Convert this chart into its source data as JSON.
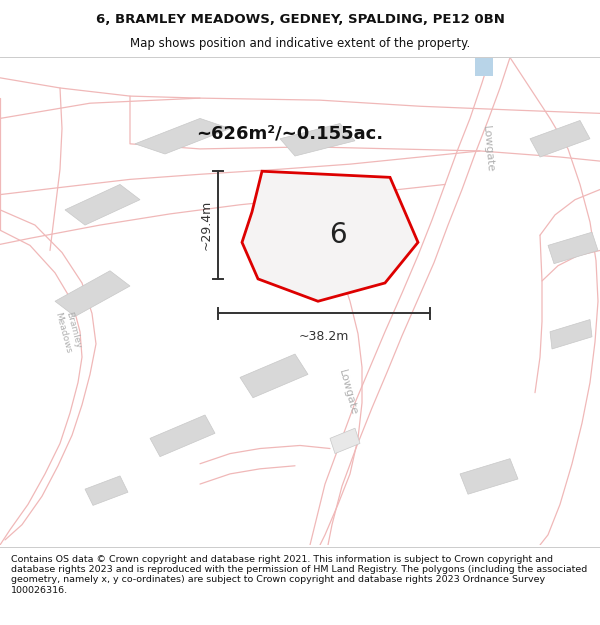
{
  "title_line1": "6, BRAMLEY MEADOWS, GEDNEY, SPALDING, PE12 0BN",
  "title_line2": "Map shows position and indicative extent of the property.",
  "footer_text": "Contains OS data © Crown copyright and database right 2021. This information is subject to Crown copyright and database rights 2023 and is reproduced with the permission of HM Land Registry. The polygons (including the associated geometry, namely x, y co-ordinates) are subject to Crown copyright and database rights 2023 Ordnance Survey 100026316.",
  "plot_number": "6",
  "area_label": "~626m²/~0.155ac.",
  "width_label": "~38.2m",
  "height_label": "~29.4m",
  "road_color": "#f0b8b8",
  "building_color": "#d8d8d8",
  "building_edge": "#c0c0c0",
  "plot_edge_color": "#dd0000",
  "dim_color": "#333333",
  "street_label_color": "#b0b0b0",
  "road_fill": "#f5e8e8",
  "map_bg": "#faf8f8",
  "title_bg": "#ffffff",
  "footer_bg": "#ffffff"
}
